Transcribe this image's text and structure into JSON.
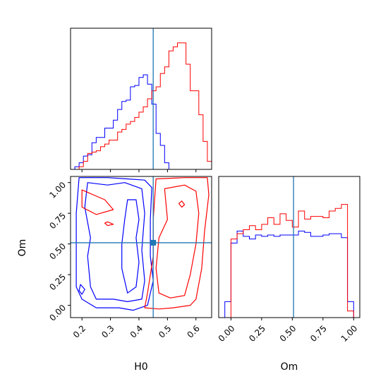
{
  "colors": {
    "a": "#0000ff",
    "b": "#ff0000",
    "truth": "#1f77b4",
    "axes": "#000000"
  },
  "axis_titles": {
    "x_H0": "H0",
    "x_Om": "Om",
    "y_Om": "Om"
  },
  "chart_data": [
    {
      "type": "histogram",
      "panel": "H0 marginal",
      "x_ticks": [
        0.2,
        0.3,
        0.4,
        0.5,
        0.6
      ],
      "xlim": [
        0.16,
        0.655
      ],
      "ylim": [
        0,
        1.06
      ],
      "y_ticks_shown": false,
      "truth_x": 0.45,
      "bin_edges": [
        0.16,
        0.175,
        0.19,
        0.205,
        0.22,
        0.235,
        0.25,
        0.265,
        0.28,
        0.295,
        0.31,
        0.325,
        0.34,
        0.355,
        0.37,
        0.385,
        0.4,
        0.415,
        0.43,
        0.445,
        0.46,
        0.475,
        0.49,
        0.505,
        0.52,
        0.535,
        0.55,
        0.565,
        0.58,
        0.595,
        0.61,
        0.625,
        0.64,
        0.655
      ],
      "series": [
        {
          "color": "#0000ff",
          "values": [
            0,
            0.02,
            0.05,
            0.1,
            0.11,
            0.2,
            0.24,
            0.24,
            0.31,
            0.31,
            0.37,
            0.45,
            0.51,
            0.52,
            0.62,
            0.63,
            0.69,
            0.71,
            0.64,
            0.49,
            0.27,
            0.18,
            0.05,
            0,
            0,
            0,
            0,
            0,
            0,
            0,
            0,
            0,
            0
          ]
        },
        {
          "color": "#ff0000",
          "values": [
            0,
            0,
            0.02,
            0.06,
            0.12,
            0.13,
            0.14,
            0.17,
            0.19,
            0.22,
            0.22,
            0.28,
            0.3,
            0.34,
            0.36,
            0.39,
            0.43,
            0.47,
            0.53,
            0.59,
            0.62,
            0.72,
            0.77,
            0.89,
            0.92,
            0.95,
            0.95,
            0.79,
            0.59,
            0.59,
            0.41,
            0.21,
            0.06
          ]
        }
      ]
    },
    {
      "type": "contour",
      "panel": "H0 vs Om",
      "x_ticks": [
        0.2,
        0.3,
        0.4,
        0.5,
        0.6
      ],
      "y_ticks": [
        0.0,
        0.25,
        0.5,
        0.75,
        1.0
      ],
      "y_tick_labels": [
        "0.00",
        "0.25",
        "0.50",
        "0.75",
        "1.00"
      ],
      "xlim": [
        0.16,
        0.655
      ],
      "ylim": [
        -0.1,
        1.05
      ],
      "truth": {
        "x": 0.45,
        "y": 0.51
      },
      "series": [
        {
          "color": "#0000ff",
          "contours": [
            [
              [
                0.19,
                1.04
              ],
              [
                0.29,
                1.04
              ],
              [
                0.36,
                1.03
              ],
              [
                0.42,
                1.02
              ],
              [
                0.445,
                0.96
              ],
              [
                0.44,
                0.7
              ],
              [
                0.44,
                0.4
              ],
              [
                0.45,
                0.2
              ],
              [
                0.43,
                0.0
              ],
              [
                0.38,
                -0.04
              ],
              [
                0.33,
                -0.02
              ],
              [
                0.25,
                -0.02
              ],
              [
                0.2,
                0.05
              ],
              [
                0.18,
                0.15
              ],
              [
                0.18,
                0.4
              ],
              [
                0.18,
                0.75
              ],
              [
                0.19,
                1.04
              ]
            ],
            [
              [
                0.22,
                1.0
              ],
              [
                0.29,
                0.98
              ],
              [
                0.35,
                1.0
              ],
              [
                0.41,
                0.95
              ],
              [
                0.42,
                0.75
              ],
              [
                0.41,
                0.45
              ],
              [
                0.42,
                0.2
              ],
              [
                0.41,
                0.05
              ],
              [
                0.36,
                0.03
              ],
              [
                0.31,
                0.05
              ],
              [
                0.25,
                0.05
              ],
              [
                0.23,
                0.15
              ],
              [
                0.22,
                0.4
              ],
              [
                0.23,
                0.55
              ],
              [
                0.21,
                0.8
              ],
              [
                0.22,
                1.0
              ]
            ],
            [
              [
                0.36,
                0.86
              ],
              [
                0.39,
                0.86
              ],
              [
                0.4,
                0.7
              ],
              [
                0.39,
                0.55
              ],
              [
                0.4,
                0.35
              ],
              [
                0.39,
                0.15
              ],
              [
                0.36,
                0.1
              ],
              [
                0.34,
                0.3
              ],
              [
                0.34,
                0.5
              ],
              [
                0.35,
                0.7
              ],
              [
                0.36,
                0.86
              ]
            ],
            [
              [
                0.195,
                0.17
              ],
              [
                0.21,
                0.13
              ],
              [
                0.2,
                0.09
              ],
              [
                0.19,
                0.12
              ],
              [
                0.195,
                0.17
              ]
            ]
          ]
        },
        {
          "color": "#ff0000",
          "contours": [
            [
              [
                0.46,
                1.03
              ],
              [
                0.56,
                1.04
              ],
              [
                0.64,
                1.04
              ],
              [
                0.645,
                0.9
              ],
              [
                0.63,
                0.6
              ],
              [
                0.62,
                0.3
              ],
              [
                0.6,
                0.05
              ],
              [
                0.58,
                0.0
              ],
              [
                0.52,
                -0.02
              ],
              [
                0.47,
                -0.03
              ],
              [
                0.42,
                -0.02
              ],
              [
                0.43,
                0.1
              ],
              [
                0.45,
                0.4
              ],
              [
                0.45,
                0.7
              ],
              [
                0.46,
                1.03
              ]
            ],
            [
              [
                0.49,
                0.95
              ],
              [
                0.56,
                0.98
              ],
              [
                0.6,
                0.93
              ],
              [
                0.61,
                0.75
              ],
              [
                0.6,
                0.5
              ],
              [
                0.58,
                0.25
              ],
              [
                0.56,
                0.08
              ],
              [
                0.51,
                0.06
              ],
              [
                0.47,
                0.1
              ],
              [
                0.46,
                0.3
              ],
              [
                0.47,
                0.55
              ],
              [
                0.5,
                0.7
              ],
              [
                0.49,
                0.95
              ]
            ],
            [
              [
                0.2,
                0.94
              ],
              [
                0.28,
                0.86
              ],
              [
                0.31,
                0.78
              ],
              [
                0.25,
                0.74
              ],
              [
                0.2,
                0.8
              ],
              [
                0.2,
                0.94
              ]
            ],
            [
              [
                0.29,
                0.68
              ],
              [
                0.31,
                0.66
              ],
              [
                0.29,
                0.65
              ],
              [
                0.28,
                0.67
              ],
              [
                0.29,
                0.68
              ]
            ],
            [
              [
                0.55,
                0.85
              ],
              [
                0.56,
                0.82
              ],
              [
                0.55,
                0.8
              ],
              [
                0.54,
                0.83
              ],
              [
                0.55,
                0.85
              ]
            ]
          ]
        }
      ]
    },
    {
      "type": "histogram",
      "panel": "Om marginal",
      "x_ticks": [
        0.0,
        0.25,
        0.5,
        0.75,
        1.0
      ],
      "x_tick_labels": [
        "0.00",
        "0.25",
        "0.50",
        "0.75",
        "1.00"
      ],
      "xlim": [
        -0.1,
        1.05
      ],
      "ylim": [
        0,
        1.06
      ],
      "y_ticks_shown": false,
      "truth_x": 0.51,
      "bin_edges": [
        -0.1,
        -0.05,
        0.0,
        0.05,
        0.1,
        0.15,
        0.2,
        0.25,
        0.3,
        0.35,
        0.4,
        0.45,
        0.5,
        0.55,
        0.6,
        0.65,
        0.7,
        0.75,
        0.8,
        0.85,
        0.9,
        0.95,
        1.0,
        1.05
      ],
      "series": [
        {
          "color": "#0000ff",
          "values": [
            0,
            0.12,
            0.56,
            0.65,
            0.61,
            0.59,
            0.62,
            0.61,
            0.62,
            0.61,
            0.62,
            0.62,
            0.62,
            0.65,
            0.64,
            0.61,
            0.61,
            0.62,
            0.63,
            0.63,
            0.6,
            0.12,
            0
          ]
        },
        {
          "color": "#ff0000",
          "values": [
            0,
            0,
            0.59,
            0.63,
            0.66,
            0.69,
            0.66,
            0.7,
            0.75,
            0.7,
            0.78,
            0.73,
            0.68,
            0.8,
            0.74,
            0.76,
            0.76,
            0.75,
            0.8,
            0.82,
            0.85,
            0.05,
            0
          ]
        }
      ]
    }
  ]
}
